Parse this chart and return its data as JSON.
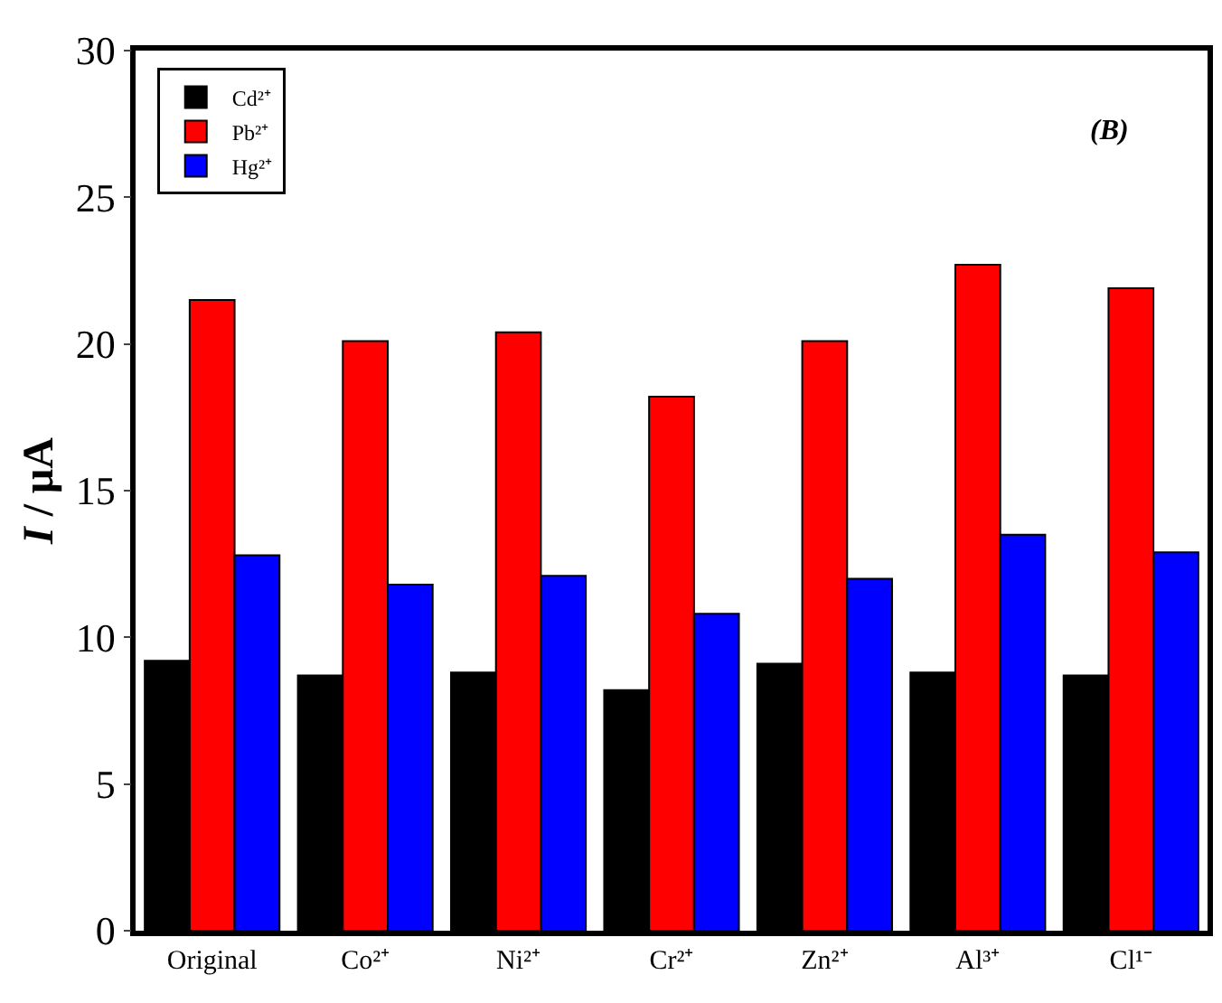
{
  "chart_data": {
    "type": "bar",
    "ylabel": "I / μA",
    "annotations": [
      "(B)"
    ],
    "categories": [
      "Original",
      "Co²⁺",
      "Ni²⁺",
      "Cr²⁺",
      "Zn²⁺",
      "Al³⁺",
      "Cl¹⁻"
    ],
    "series": [
      {
        "name": "Cd²⁺",
        "color": "#000000",
        "values": [
          9.2,
          8.7,
          8.8,
          8.2,
          9.1,
          8.8,
          8.7
        ]
      },
      {
        "name": "Pb²⁺",
        "color": "#ff0000",
        "values": [
          21.5,
          20.1,
          20.4,
          18.2,
          20.1,
          22.7,
          21.9
        ]
      },
      {
        "name": "Hg²⁺",
        "color": "#0000ff",
        "values": [
          12.8,
          11.8,
          12.1,
          10.8,
          12.0,
          13.5,
          12.9
        ]
      }
    ],
    "ylim": [
      0,
      30
    ],
    "yticks": [
      0,
      5,
      10,
      15,
      20,
      25,
      30
    ],
    "grid": false,
    "legend": "top left"
  }
}
